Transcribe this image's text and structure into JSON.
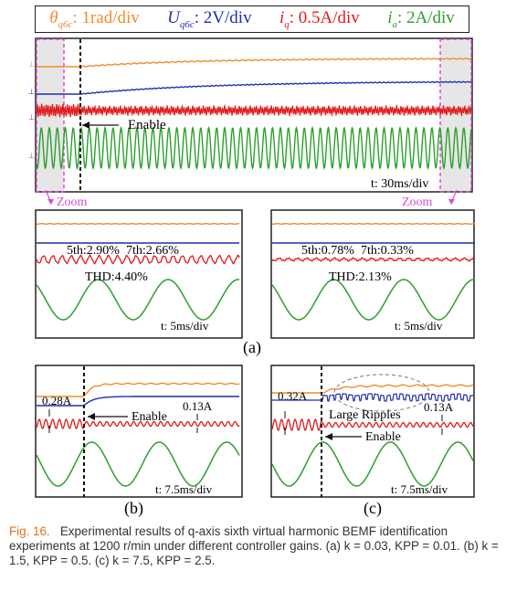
{
  "legend": {
    "theta_sym": "θ",
    "theta_sub": "q6c",
    "theta_val": ": 1rad/div",
    "u_sym": "U",
    "u_sub": "q6c",
    "u_val": ": 2V/div",
    "iq_sym": "i",
    "iq_sub": "q",
    "iq_val": ": 0.5A/div",
    "ia_sym": "i",
    "ia_sub": "a",
    "ia_val": ": 2A/div"
  },
  "colors": {
    "theta": "#f08c2a",
    "u": "#1f2fb0",
    "iq": "#e11a1a",
    "ia": "#2aa02a",
    "zoom": "#d84bd8"
  },
  "top_plot": {
    "enable_label": "Enable",
    "time_label": "t: 30ms/div",
    "zoom_left": "Zoom",
    "zoom_right": "Zoom"
  },
  "panel_a_left": {
    "harmonics": "5th:2.90%  7th:2.66%",
    "thd": "THD:4.40%",
    "time_label": "t: 5ms/div"
  },
  "panel_a_right": {
    "harmonics": "5th:0.78%  7th:0.33%",
    "thd": "THD:2.13%",
    "time_label": "t: 5ms/div"
  },
  "label_a": "(a)",
  "panel_b": {
    "ripple1": "0.28A",
    "ripple2": "0.13A",
    "enable_label": "Enable",
    "time_label": "t: 7.5ms/div",
    "label": "(b)"
  },
  "panel_c": {
    "ripple1": "0.32A",
    "ripple2": "0.13A",
    "ripples_label": "Large Ripples",
    "enable_label": "Enable",
    "time_label": "t: 7.5ms/div",
    "label": "(c)"
  },
  "caption": {
    "fig": "Fig. 16.",
    "text": "Experimental results of q-axis sixth virtual harmonic BEMF identification experiments at 1200 r/min under different controller gains. (a) k = 0.03, KPP = 0.01. (b) k = 1.5, KPP = 0.5. (c) k = 7.5, KPP = 2.5."
  }
}
